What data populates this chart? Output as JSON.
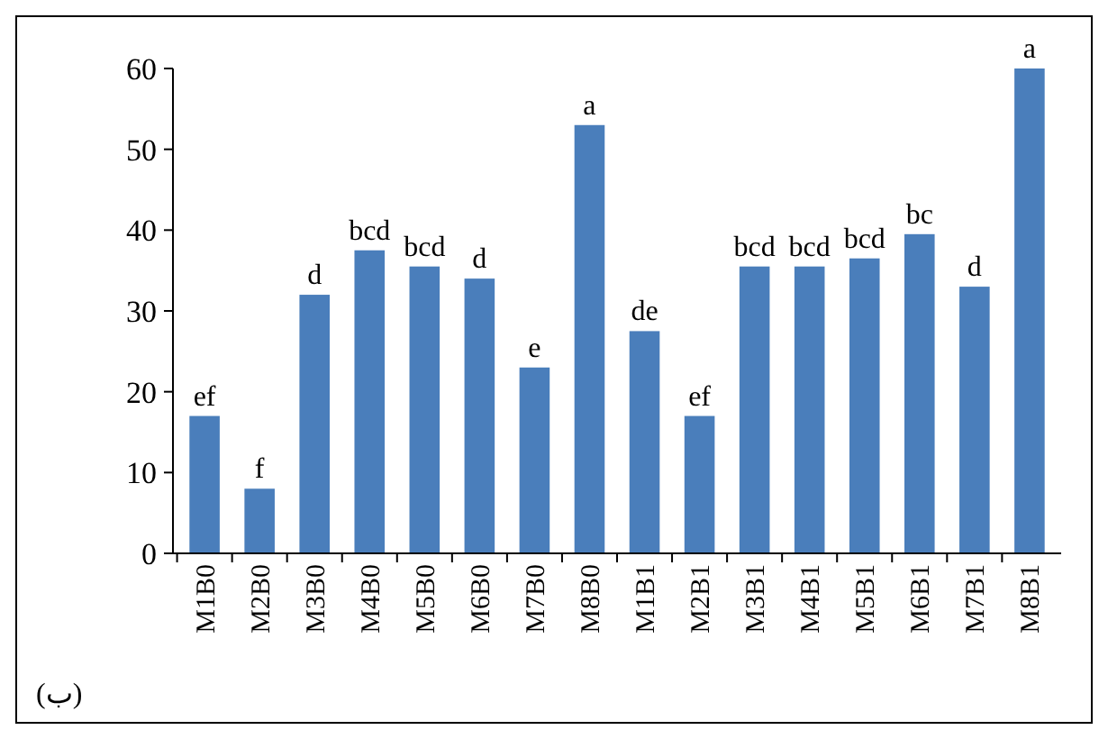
{
  "chart_data": {
    "type": "bar",
    "categories": [
      "M1B0",
      "M2B0",
      "M3B0",
      "M4B0",
      "M5B0",
      "M6B0",
      "M7B0",
      "M8B0",
      "M1B1",
      "M2B1",
      "M3B1",
      "M4B1",
      "M5B1",
      "M6B1",
      "M7B1",
      "M8B1"
    ],
    "values": [
      17,
      8,
      32,
      37.5,
      35.5,
      34,
      23,
      53,
      27.5,
      17,
      35.5,
      35.5,
      36.5,
      39.5,
      33,
      60
    ],
    "color": "#4a7ebb",
    "ylim": [
      0,
      60
    ],
    "yticks": [
      0,
      10,
      20,
      30,
      40,
      50,
      60
    ],
    "grid": false,
    "annotations": [
      {
        "text": "ef",
        "x": "M1B0",
        "y": 17
      },
      {
        "text": "f",
        "x": "M2B0",
        "y": 8
      },
      {
        "text": "d",
        "x": "M3B0",
        "y": 32
      },
      {
        "text": "bcd",
        "x": "M4B0",
        "y": 37.5
      },
      {
        "text": "bcd",
        "x": "M5B0",
        "y": 35.5
      },
      {
        "text": "d",
        "x": "M6B0",
        "y": 34
      },
      {
        "text": "e",
        "x": "M7B0",
        "y": 23
      },
      {
        "text": "a",
        "x": "M8B0",
        "y": 53
      },
      {
        "text": "de",
        "x": "M1B1",
        "y": 27.5
      },
      {
        "text": "ef",
        "x": "M2B1",
        "y": 17
      },
      {
        "text": "bcd",
        "x": "M3B1",
        "y": 35.5
      },
      {
        "text": "bcd",
        "x": "M4B1",
        "y": 35.5
      },
      {
        "text": "bcd",
        "x": "M5B1",
        "y": 36.5
      },
      {
        "text": "bc",
        "x": "M6B1",
        "y": 39.5
      },
      {
        "text": "d",
        "x": "M7B1",
        "y": 33
      },
      {
        "text": "a",
        "x": "M8B1",
        "y": 60
      },
      "(ب)"
    ]
  }
}
